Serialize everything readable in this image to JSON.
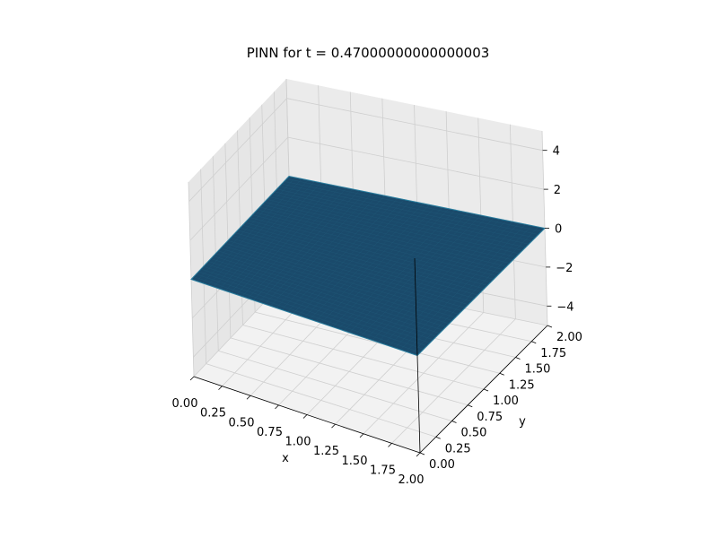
{
  "chart_data": {
    "type": "surface",
    "title": "PINN for t = 0.47000000000000003",
    "xlabel": "x",
    "ylabel": "y",
    "zlabel": "",
    "xlim": [
      0,
      2
    ],
    "ylim": [
      0,
      2
    ],
    "zlim": [
      -5,
      5
    ],
    "x_ticks": [
      "0.00",
      "0.25",
      "0.50",
      "0.75",
      "1.00",
      "1.25",
      "1.50",
      "1.75",
      "2.00"
    ],
    "y_ticks": [
      "0.00",
      "0.25",
      "0.50",
      "0.75",
      "1.00",
      "1.25",
      "1.50",
      "1.75",
      "2.00"
    ],
    "z_ticks": [
      "−4",
      "−2",
      "0",
      "2",
      "4"
    ],
    "surface": {
      "description_value": "approximately constant u(x,y) = 0 over the domain",
      "x_range": [
        0,
        2
      ],
      "y_range": [
        0,
        2
      ],
      "z_value": 0,
      "color": "#1a4a6b",
      "edge_color": "#2a7fa0"
    },
    "grid": true,
    "pane_color": "#f2f2f2",
    "grid_color": "#cfcfcf"
  }
}
